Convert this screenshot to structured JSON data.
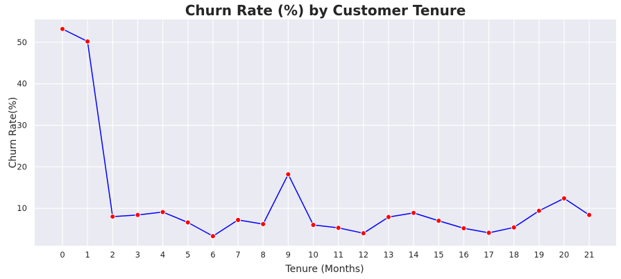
{
  "chart_data": {
    "type": "line",
    "title": "Churn Rate (%) by Customer Tenure",
    "xlabel": "Tenure (Months)",
    "ylabel": "Churn Rate(%)",
    "categories": [
      "0",
      "1",
      "2",
      "3",
      "4",
      "5",
      "6",
      "7",
      "8",
      "9",
      "10",
      "11",
      "12",
      "13",
      "14",
      "15",
      "16",
      "17",
      "18",
      "19",
      "20",
      "21"
    ],
    "series": [
      {
        "values": [
          53.2,
          50.2,
          8.0,
          8.4,
          9.1,
          6.6,
          3.3,
          7.2,
          6.2,
          18.2,
          6.0,
          5.3,
          4.0,
          7.9,
          8.9,
          7.0,
          5.2,
          4.1,
          5.4,
          9.4,
          12.4,
          8.4
        ],
        "line_color": "#0000ff",
        "marker_color": "#ff0000"
      }
    ],
    "yticks": [
      10,
      20,
      30,
      40,
      50
    ],
    "ylim": [
      1.0,
      55.5
    ],
    "grid": true,
    "legend": "none",
    "background_color": "#eaeaf2",
    "grid_color": "#ffffff"
  }
}
